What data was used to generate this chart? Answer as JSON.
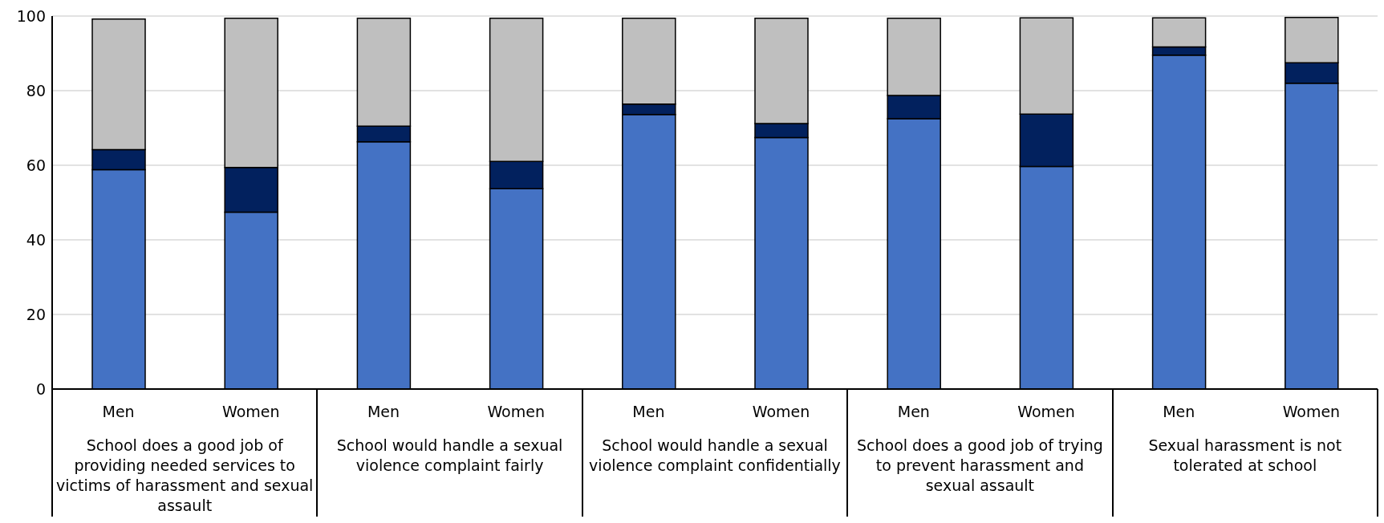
{
  "chart_data": {
    "type": "bar",
    "stacked": true,
    "categories": [
      "Men",
      "Women",
      "Men",
      "Women",
      "Men",
      "Women",
      "Men",
      "Women",
      "Men",
      "Women"
    ],
    "series": [
      {
        "color": "#4472c4",
        "values": [
          58.8,
          47.4,
          66.3,
          53.7,
          73.6,
          67.4,
          72.5,
          59.7,
          89.5,
          82.0
        ]
      },
      {
        "color": "#02215e",
        "values": [
          5.4,
          12.0,
          4.2,
          7.3,
          2.8,
          3.8,
          6.2,
          14.0,
          2.2,
          5.5
        ]
      },
      {
        "color": "#bfbfbf",
        "values": [
          35.0,
          40.0,
          28.9,
          38.4,
          23.0,
          28.2,
          20.7,
          25.8,
          7.8,
          12.1
        ]
      }
    ],
    "ylim": [
      0,
      100
    ],
    "yticks": [
      0,
      20,
      40,
      60,
      80,
      100
    ],
    "grid": "y",
    "annotations": [
      "School does a good job of providing needed services to victims of harassment and sexual assault",
      "School would handle a sexual violence complaint fairly",
      "School would handle a sexual violence complaint confidentially",
      "School does a good job of trying to prevent harassment and sexual assault",
      "Sexual harassment is not tolerated at school"
    ]
  }
}
